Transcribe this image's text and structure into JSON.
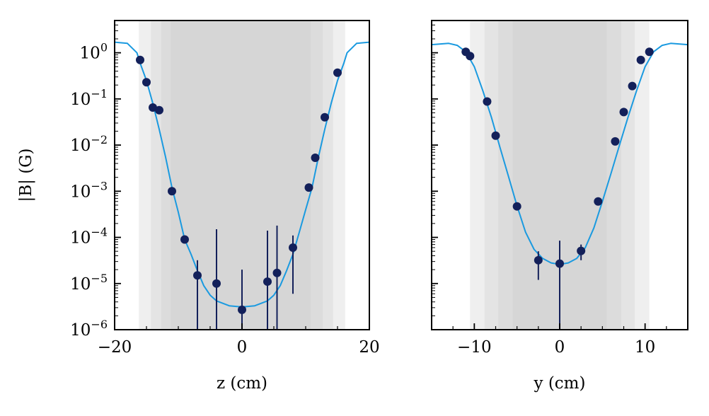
{
  "chart_data": [
    {
      "type": "scatter",
      "xlabel": "z (cm)",
      "ylabel": "|B| (G)",
      "xlim": [
        -20,
        20
      ],
      "ylim": [
        1e-06,
        5
      ],
      "yscale": "log",
      "grid": false,
      "x_ticks": [
        -20,
        0,
        20
      ],
      "x_tick_labels": [
        "−20",
        "0",
        "20"
      ],
      "y_ticks": [
        1e-06,
        1e-05,
        0.0001,
        0.001,
        0.01,
        0.1,
        1
      ],
      "y_tick_exponents": [
        "−6",
        "−5",
        "−4",
        "−3",
        "−2",
        "−1",
        "0"
      ],
      "bands": [
        {
          "range": [
            -16.2,
            16.2
          ],
          "color": "#efefef"
        },
        {
          "range": [
            -14.3,
            14.3
          ],
          "color": "#e4e4e4"
        },
        {
          "range": [
            -12.7,
            12.7
          ],
          "color": "#dcdcdc"
        },
        {
          "range": [
            -11.2,
            10.8
          ],
          "color": "#d6d6d6"
        }
      ],
      "series": [
        {
          "kind": "points",
          "color": "#13205a",
          "x": [
            -16.0,
            -15.0,
            -14.0,
            -13.0,
            -11.0,
            -9.0,
            -7.0,
            -4.0,
            0.0,
            4.0,
            5.5,
            8.0,
            10.5,
            11.5,
            13.0,
            15.0
          ],
          "y": [
            0.7,
            0.23,
            0.065,
            0.057,
            0.001,
            9e-05,
            1.5e-05,
            1e-05,
            2.7e-06,
            1.1e-05,
            1.7e-05,
            6e-05,
            0.0012,
            0.0053,
            0.04,
            0.37
          ],
          "y_low": [
            null,
            null,
            null,
            null,
            null,
            null,
            1e-06,
            1e-06,
            1e-06,
            1e-06,
            1e-06,
            6e-06,
            null,
            null,
            null,
            null
          ],
          "y_high": [
            null,
            null,
            null,
            null,
            null,
            null,
            3.2e-05,
            0.00015,
            2e-05,
            0.00014,
            0.00018,
            0.00011,
            null,
            null,
            null,
            null
          ]
        },
        {
          "kind": "curve",
          "color": "#1a9ae0",
          "x": [
            -20,
            -18,
            -16.5,
            -16,
            -15,
            -14,
            -13,
            -12,
            -11,
            -10,
            -9,
            -8,
            -7,
            -6,
            -5,
            -4,
            -2,
            0,
            2,
            4,
            5,
            6,
            7,
            8,
            9,
            10,
            11,
            12,
            13,
            14,
            15,
            16,
            16.5,
            18,
            20
          ],
          "y": [
            1.7,
            1.6,
            1.0,
            0.6,
            0.25,
            0.08,
            0.022,
            0.0055,
            0.0012,
            0.00035,
            9e-05,
            4.3e-05,
            1.9e-05,
            9e-06,
            5.6e-06,
            4.2e-06,
            3.3e-06,
            3.1e-06,
            3.3e-06,
            4.2e-06,
            5.6e-06,
            9e-06,
            1.9e-05,
            4.3e-05,
            0.00013,
            0.0004,
            0.0012,
            0.0055,
            0.022,
            0.08,
            0.25,
            0.6,
            1.0,
            1.6,
            1.7
          ]
        }
      ]
    },
    {
      "type": "scatter",
      "xlabel": "y (cm)",
      "ylabel": "",
      "xlim": [
        -15,
        15
      ],
      "ylim": [
        1e-06,
        5
      ],
      "yscale": "log",
      "grid": false,
      "x_ticks": [
        -10,
        0,
        10
      ],
      "x_tick_labels": [
        "−10",
        "0",
        "10"
      ],
      "bands": [
        {
          "range": [
            -10.5,
            10.5
          ],
          "color": "#efefef"
        },
        {
          "range": [
            -8.8,
            8.8
          ],
          "color": "#e4e4e4"
        },
        {
          "range": [
            -7.2,
            7.2
          ],
          "color": "#dcdcdc"
        },
        {
          "range": [
            -5.5,
            5.5
          ],
          "color": "#d6d6d6"
        }
      ],
      "series": [
        {
          "kind": "points",
          "color": "#13205a",
          "x": [
            -11.0,
            -10.5,
            -8.5,
            -7.5,
            -5.0,
            -2.5,
            0.0,
            2.5,
            4.5,
            6.5,
            7.5,
            8.5,
            9.5,
            10.5
          ],
          "y": [
            1.05,
            0.85,
            0.088,
            0.016,
            0.00047,
            3.2e-05,
            2.7e-05,
            5.1e-05,
            0.0006,
            0.012,
            0.052,
            0.19,
            0.7,
            1.05
          ],
          "y_low": [
            null,
            null,
            null,
            null,
            null,
            1.2e-05,
            1e-06,
            3.2e-05,
            null,
            null,
            null,
            null,
            null,
            null
          ],
          "y_high": [
            null,
            null,
            null,
            null,
            null,
            5e-05,
            8.5e-05,
            7e-05,
            null,
            null,
            null,
            null,
            null,
            null
          ]
        },
        {
          "kind": "curve",
          "color": "#1a9ae0",
          "x": [
            -15,
            -13,
            -12,
            -11,
            -10,
            -9,
            -8,
            -7,
            -6,
            -5,
            -4,
            -3,
            -2,
            -1,
            0,
            1,
            2,
            3,
            4,
            5,
            6,
            7,
            8,
            9,
            10,
            11,
            12,
            13,
            15
          ],
          "y": [
            1.5,
            1.6,
            1.45,
            1.05,
            0.5,
            0.15,
            0.04,
            0.009,
            0.0021,
            0.00048,
            0.00013,
            5.5e-05,
            3.5e-05,
            2.8e-05,
            2.6e-05,
            2.8e-05,
            3.5e-05,
            6e-05,
            0.00016,
            0.0006,
            0.0024,
            0.01,
            0.04,
            0.15,
            0.5,
            1.05,
            1.45,
            1.6,
            1.5
          ]
        }
      ]
    }
  ]
}
